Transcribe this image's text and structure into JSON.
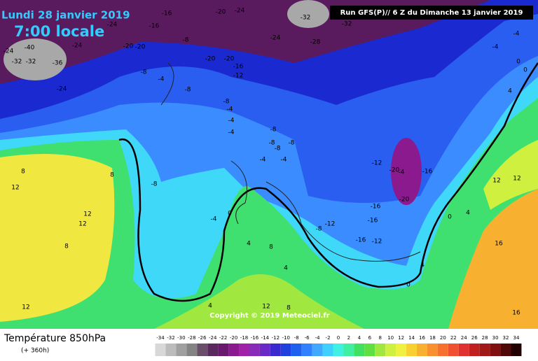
{
  "header": {
    "date": "Lundi 28 janvier 2019",
    "time": "7:00 locale",
    "run": "Run GFS(P)// 6 Z du Dimanche 13 janvier 2019"
  },
  "map": {
    "copyright": "Copyright © 2019 Meteociel.fr",
    "contour_labels": [
      -24,
      -32,
      -40,
      -32,
      -36,
      -24,
      -24,
      -24,
      -16,
      -16,
      -20,
      -20,
      -8,
      -20,
      -20,
      -16,
      -12,
      -24,
      -28,
      -20,
      -24,
      -32,
      -32,
      -8,
      -4,
      -8,
      -8,
      -4,
      -4,
      -4,
      -8,
      -8,
      -8,
      -8,
      -4,
      -4,
      -12,
      -20,
      -4,
      -16,
      -20,
      -16,
      -16,
      -12,
      -8,
      -16,
      -12,
      -8,
      8,
      12,
      8,
      12,
      12,
      8,
      0,
      -4,
      4,
      8,
      4,
      4,
      0,
      12,
      12,
      4,
      0,
      16,
      16,
      12,
      4,
      12,
      8,
      -4,
      0,
      0,
      4,
      -4
    ]
  },
  "legend": {
    "title": "Température 850hPa",
    "subtitle": "(+ 360h)",
    "ticks": [
      -34,
      -32,
      -30,
      -28,
      -26,
      -24,
      -22,
      -20,
      -18,
      -16,
      -14,
      -12,
      -10,
      -8,
      -6,
      -4,
      -2,
      0,
      2,
      4,
      6,
      8,
      10,
      12,
      14,
      16,
      18,
      20,
      22,
      24,
      26,
      28,
      30,
      32,
      34
    ],
    "colors": [
      "#d8d8d8",
      "#bcbcbc",
      "#a0a0a0",
      "#848484",
      "#6a4f6a",
      "#5a2a5e",
      "#6a1a6e",
      "#8a1a8e",
      "#a020a8",
      "#8a2ab8",
      "#6a2ac8",
      "#3a2ad0",
      "#2040e0",
      "#2060f0",
      "#3080ff",
      "#40a8ff",
      "#40d0ff",
      "#40f0e0",
      "#40f0a0",
      "#40e060",
      "#60e040",
      "#a0e840",
      "#d0f040",
      "#f0f040",
      "#f8d030",
      "#f8b030",
      "#f89030",
      "#f87030",
      "#f05030",
      "#e03030",
      "#c02020",
      "#a01818",
      "#801010",
      "#500808",
      "#200000"
    ]
  }
}
